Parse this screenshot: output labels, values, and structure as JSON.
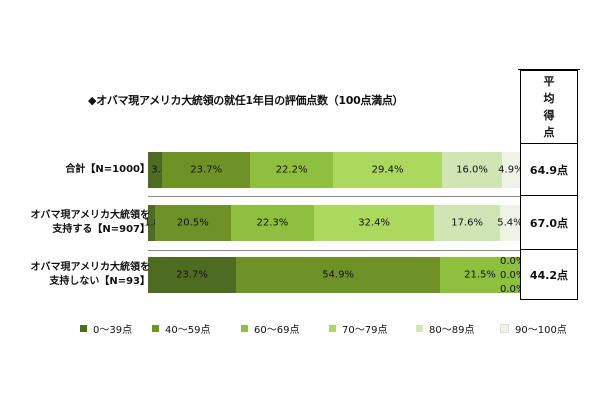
{
  "chart_data": {
    "type": "bar",
    "stacked": true,
    "orientation": "horizontal",
    "title": "◆オバマ現アメリカ大統領の就任1年目の評価点数（100点満点）",
    "avg_header": [
      "平",
      "均",
      "得",
      "点"
    ],
    "segments": [
      {
        "name": "0～39点",
        "color": "#4e6b22"
      },
      {
        "name": "40～59点",
        "color": "#6f9227"
      },
      {
        "name": "60～69点",
        "color": "#8ebf3e"
      },
      {
        "name": "70～79点",
        "color": "#acd85e"
      },
      {
        "name": "80～89点",
        "color": "#cfe5b4"
      },
      {
        "name": "90～100点",
        "color": "#eef3e6"
      }
    ],
    "rows": [
      {
        "label_lines": [
          "合計【N=1000】"
        ],
        "values": [
          3.8,
          23.7,
          22.2,
          29.4,
          16.0,
          4.9
        ],
        "labels": [
          "3.8%",
          "23.7%",
          "22.2%",
          "29.4%",
          "16.0%",
          "4.9%"
        ],
        "average": "64.9点"
      },
      {
        "label_lines": [
          "オバマ現アメリカ大統領を",
          "支持する【N=907】"
        ],
        "values": [
          1.8,
          20.5,
          22.3,
          32.4,
          17.6,
          5.4
        ],
        "labels": [
          "1.8%",
          "20.5%",
          "22.3%",
          "32.4%",
          "17.6%",
          "5.4%"
        ],
        "average": "67.0点"
      },
      {
        "label_lines": [
          "オバマ現アメリカ大統領を",
          "支持しない【N=93】"
        ],
        "values": [
          23.7,
          54.9,
          21.5,
          0.0,
          0.0,
          0.0
        ],
        "labels": [
          "23.7%",
          "54.9%",
          "21.5%",
          "0.0%",
          "0.0%",
          "0.0%"
        ],
        "average": "44.2点"
      }
    ]
  }
}
